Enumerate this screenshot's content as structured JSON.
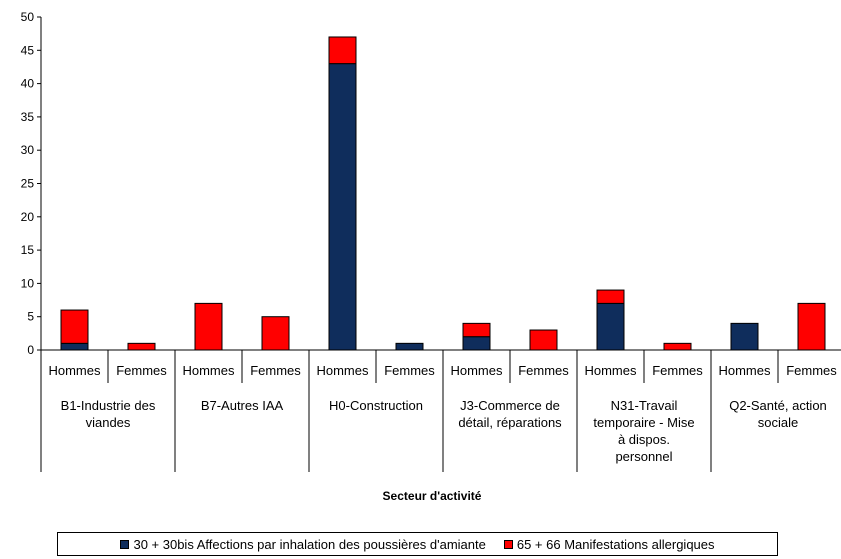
{
  "chart_data": {
    "type": "bar",
    "stacked": true,
    "xlabel": "Secteur d'activité",
    "ylabel": "",
    "ylim": [
      0,
      50
    ],
    "yticks": [
      0,
      5,
      10,
      15,
      20,
      25,
      30,
      35,
      40,
      45,
      50
    ],
    "grid": false,
    "legend_position": "bottom",
    "groups": [
      {
        "label": "B1-Industrie des viandes",
        "lines": [
          "B1-Industrie des",
          "viandes"
        ]
      },
      {
        "label": "B7-Autres IAA",
        "lines": [
          "B7-Autres IAA"
        ]
      },
      {
        "label": "H0-Construction",
        "lines": [
          "H0-Construction"
        ]
      },
      {
        "label": "J3-Commerce de détail, réparations",
        "lines": [
          "J3-Commerce de",
          "détail, réparations"
        ]
      },
      {
        "label": "N31-Travail temporaire - Mise à dispos. personnel",
        "lines": [
          "N31-Travail",
          "temporaire - Mise",
          "à dispos.",
          "personnel"
        ]
      },
      {
        "label": "Q2-Santé, action sociale",
        "lines": [
          "Q2-Santé, action",
          "sociale"
        ]
      }
    ],
    "categories": [
      "Hommes",
      "Femmes",
      "Hommes",
      "Femmes",
      "Hommes",
      "Femmes",
      "Hommes",
      "Femmes",
      "Hommes",
      "Femmes",
      "Hommes",
      "Femmes"
    ],
    "series": [
      {
        "name": "30 + 30bis Affections par inhalation des poussières d'amiante",
        "color": "#0f2d5c",
        "values": [
          1,
          0,
          0,
          0,
          43,
          1,
          2,
          0,
          7,
          0,
          4,
          0
        ]
      },
      {
        "name": "65 + 66 Manifestations allergiques",
        "color": "#ff0000",
        "values": [
          5,
          1,
          7,
          5,
          4,
          0,
          2,
          3,
          2,
          1,
          0,
          7
        ]
      }
    ]
  }
}
